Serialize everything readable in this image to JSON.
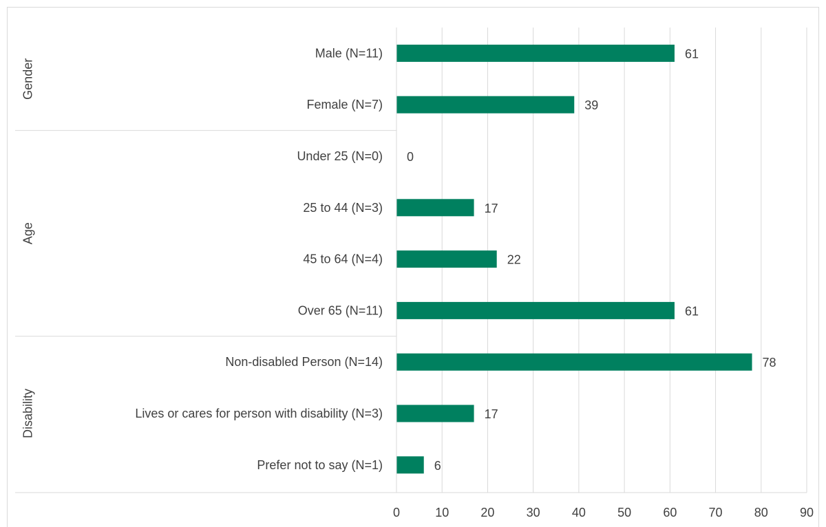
{
  "chart_data": {
    "type": "bar",
    "orientation": "horizontal",
    "groups": [
      {
        "name": "Gender",
        "categories": [
          "Male (N=11)",
          "Female (N=7)"
        ],
        "values": [
          61,
          39
        ]
      },
      {
        "name": "Age",
        "categories": [
          "Under 25 (N=0)",
          "25 to 44 (N=3)",
          "45 to 64 (N=4)",
          "Over 65 (N=11)"
        ],
        "values": [
          0,
          17,
          22,
          61
        ]
      },
      {
        "name": "Disability",
        "categories": [
          "Non-disabled Person (N=14)",
          "Lives or cares for person with disability (N=3)",
          "Prefer not to say (N=1)"
        ],
        "values": [
          78,
          17,
          6
        ]
      }
    ],
    "xlim": [
      0,
      90
    ],
    "xticks": [
      0,
      10,
      20,
      30,
      40,
      50,
      60,
      70,
      80,
      90
    ],
    "data_labels": true,
    "grid": true,
    "legend": "none",
    "bar_color": "#00805F",
    "grid_color": "#d9d9d9",
    "label_color": "#404040"
  }
}
